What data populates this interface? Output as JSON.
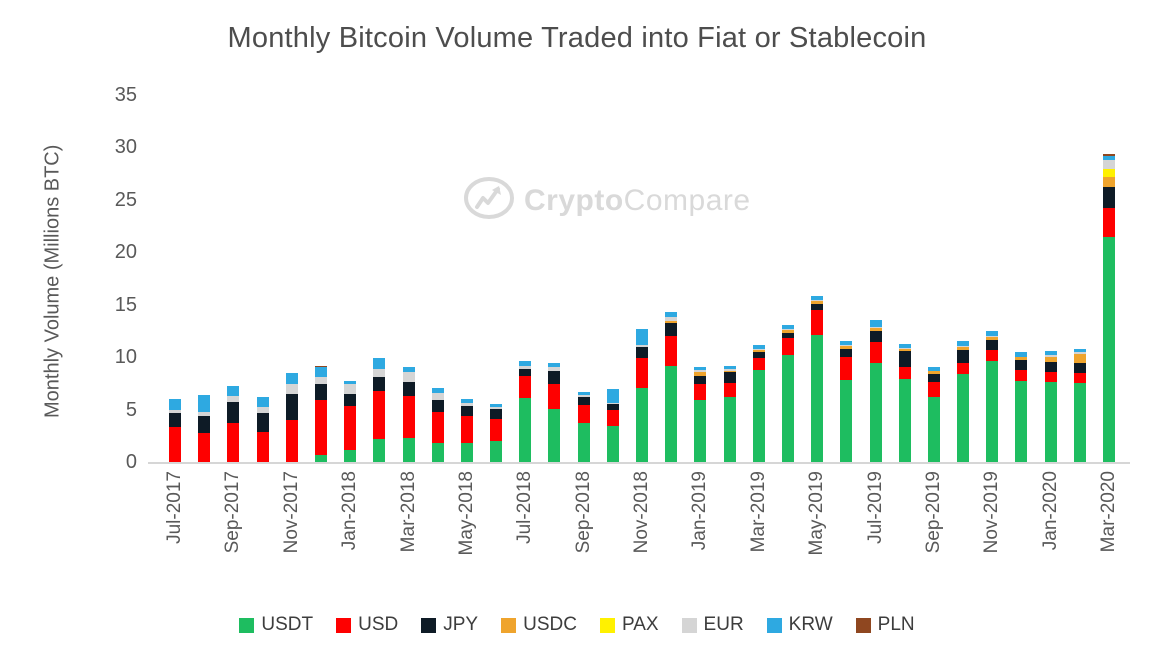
{
  "title": "Monthly Bitcoin Volume Traded into Fiat or Stablecoin",
  "watermark": {
    "icon": "cryptocompare-logo",
    "brand_bold": "Crypto",
    "brand_regular": "Compare",
    "color": "#d7d7d7"
  },
  "y_axis": {
    "label": "Monthly Volume (Millions BTC)",
    "ticks": [
      0,
      5,
      10,
      15,
      20,
      25,
      30,
      35
    ]
  },
  "legend": {
    "position": "bottom-center"
  },
  "chart_data": {
    "type": "bar",
    "stacked": true,
    "title": "Monthly Bitcoin Volume Traded into Fiat or Stablecoin",
    "xlabel": "",
    "ylabel": "Monthly Volume (Millions BTC)",
    "ylim": [
      0,
      35
    ],
    "grid": false,
    "legend_position": "bottom",
    "categories": [
      "Jul-2017",
      "Aug-2017",
      "Sep-2017",
      "Oct-2017",
      "Nov-2017",
      "Dec-2017",
      "Jan-2018",
      "Feb-2018",
      "Mar-2018",
      "Apr-2018",
      "May-2018",
      "Jun-2018",
      "Jul-2018",
      "Aug-2018",
      "Sep-2018",
      "Oct-2018",
      "Nov-2018",
      "Dec-2018",
      "Jan-2019",
      "Feb-2019",
      "Mar-2019",
      "Apr-2019",
      "May-2019",
      "Jun-2019",
      "Jul-2019",
      "Aug-2019",
      "Sep-2019",
      "Oct-2019",
      "Nov-2019",
      "Dec-2019",
      "Jan-2020",
      "Feb-2020",
      "Mar-2020"
    ],
    "x_tick_labels": [
      "Jul-2017",
      "Sep-2017",
      "Nov-2017",
      "Jan-2018",
      "Mar-2018",
      "May-2018",
      "Jul-2018",
      "Sep-2018",
      "Nov-2018",
      "Jan-2019",
      "Mar-2019",
      "May-2019",
      "Jul-2019",
      "Sep-2019",
      "Nov-2019",
      "Jan-2020",
      "Mar-2020"
    ],
    "series": [
      {
        "name": "USDT",
        "color": "#1ebd60",
        "values": [
          0,
          0,
          0,
          0,
          0,
          0.65,
          1.15,
          2.15,
          2.25,
          1.8,
          1.85,
          2.0,
          6.15,
          5.1,
          3.7,
          3.4,
          7.05,
          9.15,
          5.9,
          6.2,
          8.8,
          10.2,
          12.1,
          7.8,
          9.4,
          7.9,
          6.2,
          8.4,
          9.6,
          7.7,
          7.6,
          7.55,
          21.5
        ]
      },
      {
        "name": "USD",
        "color": "#fe0000",
        "values": [
          3.3,
          2.8,
          3.75,
          2.85,
          4.0,
          5.3,
          4.15,
          4.65,
          4.0,
          3.0,
          2.55,
          2.15,
          2.05,
          2.3,
          1.7,
          1.6,
          2.85,
          2.85,
          1.5,
          1.35,
          1.1,
          1.65,
          2.4,
          2.25,
          2.0,
          1.2,
          1.45,
          1.05,
          1.05,
          1.05,
          0.95,
          0.9,
          2.7
        ]
      },
      {
        "name": "JPY",
        "color": "#0e1b26",
        "values": [
          1.35,
          1.6,
          2.0,
          1.85,
          2.5,
          1.45,
          1.2,
          1.35,
          1.35,
          1.1,
          0.95,
          0.95,
          0.7,
          1.25,
          0.8,
          0.55,
          1.05,
          1.25,
          0.85,
          1.0,
          0.6,
          0.5,
          0.55,
          0.7,
          1.1,
          1.45,
          0.7,
          1.25,
          1.0,
          0.95,
          0.95,
          0.95,
          2.0
        ]
      },
      {
        "name": "USDC",
        "color": "#efa42d",
        "values": [
          0,
          0,
          0,
          0,
          0,
          0,
          0,
          0,
          0,
          0,
          0,
          0,
          0,
          0,
          0,
          0,
          0,
          0.2,
          0.3,
          0.15,
          0.2,
          0.25,
          0.3,
          0.3,
          0.3,
          0.25,
          0.3,
          0.3,
          0.3,
          0.3,
          0.55,
          0.95,
          0.95
        ]
      },
      {
        "name": "PAX",
        "color": "#fff100",
        "values": [
          0,
          0,
          0,
          0,
          0,
          0,
          0,
          0,
          0,
          0,
          0,
          0,
          0,
          0,
          0,
          0,
          0,
          0,
          0,
          0,
          0,
          0,
          0,
          0,
          0,
          0,
          0,
          0,
          0,
          0,
          0,
          0,
          0.75
        ]
      },
      {
        "name": "EUR",
        "color": "#d5d5d5",
        "values": [
          0.3,
          0.4,
          0.55,
          0.55,
          0.9,
          0.7,
          0.9,
          0.7,
          0.95,
          0.65,
          0.3,
          0.15,
          0.25,
          0.4,
          0.15,
          0.1,
          0.25,
          0.4,
          0.2,
          0.15,
          0.1,
          0.1,
          0.1,
          0.1,
          0.1,
          0.1,
          0.05,
          0.1,
          0.1,
          0.05,
          0.2,
          0.15,
          0.95
        ]
      },
      {
        "name": "KRW",
        "color": "#2ea9e1",
        "values": [
          1.05,
          1.6,
          0.95,
          0.95,
          1.1,
          0.95,
          0.3,
          1.05,
          0.5,
          0.5,
          0.4,
          0.25,
          0.5,
          0.4,
          0.3,
          1.3,
          1.5,
          0.45,
          0.3,
          0.3,
          0.35,
          0.4,
          0.4,
          0.35,
          0.6,
          0.4,
          0.35,
          0.4,
          0.4,
          0.4,
          0.3,
          0.3,
          0.3
        ]
      },
      {
        "name": "PLN",
        "color": "#8f4720",
        "values": [
          0,
          0,
          0,
          0,
          0,
          0.1,
          0,
          0,
          0,
          0,
          0,
          0,
          0,
          0,
          0,
          0,
          0,
          0,
          0,
          0,
          0,
          0,
          0,
          0,
          0,
          0,
          0,
          0,
          0,
          0,
          0,
          0,
          0.25
        ]
      }
    ]
  }
}
